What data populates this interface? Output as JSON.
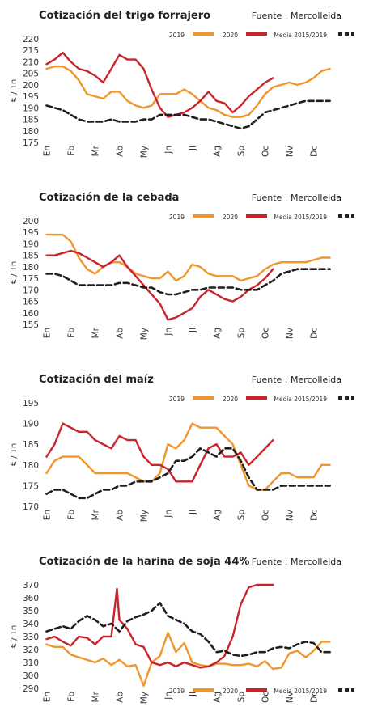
{
  "chart_data": [
    {
      "type": "line",
      "title": "Cotización del trigo forrajero",
      "source": "Fuente : Mercolleida",
      "xlabel": "",
      "ylabel": "€ / Tn",
      "ylim": [
        175,
        220
      ],
      "yticks": [
        175,
        180,
        185,
        190,
        195,
        200,
        205,
        210,
        215,
        220
      ],
      "grid": false,
      "legend": "top-right",
      "months": [
        "En",
        "Fb",
        "Mr",
        "Ab",
        "My",
        "Jn",
        "Jl",
        "Ag",
        "Sp",
        "Oc",
        "Nv",
        "Dc"
      ],
      "series": [
        {
          "name": "2019",
          "color": "#f0962a",
          "style": "solid",
          "x": [
            0,
            0.33,
            0.67,
            1,
            1.33,
            1.67,
            2,
            2.33,
            2.67,
            3,
            3.33,
            3.67,
            4,
            4.33,
            4.67,
            5,
            5.33,
            5.67,
            6,
            6.33,
            6.67,
            7,
            7.33,
            7.67,
            8,
            8.33,
            8.67,
            9,
            9.33,
            9.67,
            10,
            10.33,
            10.67,
            11,
            11.33,
            11.67
          ],
          "values": [
            207,
            208,
            208,
            206,
            202,
            196,
            195,
            194,
            197,
            197,
            193,
            191,
            190,
            191,
            196,
            196,
            196,
            198,
            196,
            193,
            190,
            189,
            187,
            186,
            186,
            187,
            191,
            196,
            199,
            200,
            201,
            200,
            201,
            203,
            206,
            207
          ]
        },
        {
          "name": "2020",
          "color": "#c8242b",
          "style": "solid",
          "x": [
            0,
            0.33,
            0.67,
            1,
            1.33,
            1.67,
            2,
            2.33,
            2.67,
            3,
            3.33,
            3.67,
            4,
            4.33,
            4.67,
            5,
            5.33,
            5.67,
            6,
            6.33,
            6.67,
            7,
            7.33,
            7.67,
            8,
            8.33,
            8.67,
            9,
            9.33
          ],
          "values": [
            209,
            211,
            214,
            210,
            207,
            206,
            204,
            201,
            207,
            213,
            211,
            211,
            207,
            198,
            190,
            186,
            187,
            188,
            190,
            193,
            197,
            193,
            192,
            188,
            191,
            195,
            198,
            201,
            203
          ]
        },
        {
          "name": "Media 2015/2019",
          "color": "#1f1f1f",
          "style": "dashed",
          "x": [
            0,
            0.33,
            0.67,
            1,
            1.33,
            1.67,
            2,
            2.33,
            2.67,
            3,
            3.33,
            3.67,
            4,
            4.33,
            4.67,
            5,
            5.33,
            5.67,
            6,
            6.33,
            6.67,
            7,
            7.33,
            7.67,
            8,
            8.33,
            8.67,
            9,
            9.33,
            9.67,
            10,
            10.33,
            10.67,
            11,
            11.33,
            11.67
          ],
          "values": [
            191,
            190,
            189,
            187,
            185,
            184,
            184,
            184,
            185,
            184,
            184,
            184,
            185,
            185,
            187,
            187,
            187,
            187,
            186,
            185,
            185,
            184,
            183,
            182,
            181,
            182,
            185,
            188,
            189,
            190,
            191,
            192,
            193,
            193,
            193,
            193
          ]
        }
      ]
    },
    {
      "type": "line",
      "title": "Cotización de la cebada",
      "source": "Fuente : Mercolleida",
      "xlabel": "",
      "ylabel": "€ / Tn",
      "ylim": [
        155,
        200
      ],
      "yticks": [
        155,
        160,
        165,
        170,
        175,
        180,
        185,
        190,
        195,
        200
      ],
      "grid": false,
      "legend": "top-right",
      "months": [
        "En",
        "Fb",
        "Mr",
        "Ab",
        "My",
        "Jn",
        "Jl",
        "Ag",
        "Sp",
        "Oc",
        "Nv",
        "Dc"
      ],
      "series": [
        {
          "name": "2019",
          "color": "#f0962a",
          "style": "solid",
          "x": [
            0,
            0.33,
            0.67,
            1,
            1.33,
            1.67,
            2,
            2.33,
            2.67,
            3,
            3.33,
            3.67,
            4,
            4.33,
            4.67,
            5,
            5.33,
            5.67,
            6,
            6.33,
            6.67,
            7,
            7.33,
            7.67,
            8,
            8.33,
            8.67,
            9,
            9.33,
            9.67,
            10,
            10.33,
            10.67,
            11,
            11.33,
            11.67
          ],
          "values": [
            194,
            194,
            194,
            191,
            184,
            179,
            177,
            180,
            182,
            182,
            180,
            177,
            176,
            175,
            175,
            178,
            174,
            176,
            181,
            180,
            177,
            176,
            176,
            176,
            174,
            175,
            176,
            179,
            181,
            182,
            182,
            182,
            182,
            183,
            184,
            184
          ]
        },
        {
          "name": "2020",
          "color": "#c8242b",
          "style": "solid",
          "x": [
            0,
            0.33,
            0.67,
            1,
            1.33,
            1.67,
            2,
            2.33,
            2.67,
            3,
            3.33,
            3.67,
            4,
            4.33,
            4.67,
            5,
            5.33,
            5.67,
            6,
            6.33,
            6.67,
            7,
            7.33,
            7.67,
            8,
            8.33,
            8.67,
            9,
            9.33
          ],
          "values": [
            185,
            185,
            186,
            187,
            186,
            184,
            182,
            180,
            182,
            185,
            180,
            176,
            172,
            168,
            164,
            157,
            158,
            160,
            162,
            167,
            170,
            168,
            166,
            165,
            167,
            170,
            172,
            175,
            179
          ]
        },
        {
          "name": "Media 2015/2019",
          "color": "#1f1f1f",
          "style": "dashed",
          "x": [
            0,
            0.33,
            0.67,
            1,
            1.33,
            1.67,
            2,
            2.33,
            2.67,
            3,
            3.33,
            3.67,
            4,
            4.33,
            4.67,
            5,
            5.33,
            5.67,
            6,
            6.33,
            6.67,
            7,
            7.33,
            7.67,
            8,
            8.33,
            8.67,
            9,
            9.33,
            9.67,
            10,
            10.33,
            10.67,
            11,
            11.33,
            11.67
          ],
          "values": [
            177,
            177,
            176,
            174,
            172,
            172,
            172,
            172,
            172,
            173,
            173,
            172,
            171,
            171,
            169,
            168,
            168,
            169,
            170,
            170,
            171,
            171,
            171,
            171,
            170,
            170,
            170,
            172,
            174,
            177,
            178,
            179,
            179,
            179,
            179,
            179
          ]
        }
      ]
    },
    {
      "type": "line",
      "title": "Cotización del maíz",
      "source": "Fuente : Mercolleida",
      "xlabel": "",
      "ylabel": "€ / Tn",
      "ylim": [
        170,
        195
      ],
      "yticks": [
        170,
        175,
        180,
        185,
        190,
        195
      ],
      "grid": false,
      "legend": "top-right",
      "months": [
        "En",
        "Fb",
        "Mr",
        "Ab",
        "My",
        "Jn",
        "Jl",
        "Ag",
        "Sp",
        "Oc",
        "Nv",
        "Dc"
      ],
      "series": [
        {
          "name": "2019",
          "color": "#f0962a",
          "style": "solid",
          "x": [
            0,
            0.33,
            0.67,
            1,
            1.33,
            1.67,
            2,
            2.33,
            2.67,
            3,
            3.33,
            3.67,
            4,
            4.33,
            4.67,
            5,
            5.33,
            5.67,
            6,
            6.33,
            6.67,
            7,
            7.33,
            7.67,
            8,
            8.33,
            8.67,
            9,
            9.33,
            9.67,
            10,
            10.33,
            10.67,
            11,
            11.33,
            11.67
          ],
          "values": [
            178,
            181,
            182,
            182,
            182,
            180,
            178,
            178,
            178,
            178,
            178,
            177,
            176,
            176,
            178,
            185,
            184,
            186,
            190,
            189,
            189,
            189,
            187,
            185,
            180,
            175,
            174,
            174,
            176,
            178,
            178,
            177,
            177,
            177,
            180,
            180
          ]
        },
        {
          "name": "2020",
          "color": "#c8242b",
          "style": "solid",
          "x": [
            0,
            0.33,
            0.67,
            1,
            1.33,
            1.67,
            2,
            2.33,
            2.67,
            3,
            3.33,
            3.67,
            4,
            4.33,
            4.67,
            5,
            5.33,
            5.67,
            6,
            6.33,
            6.67,
            7,
            7.33,
            7.67,
            8,
            8.33,
            8.67,
            9,
            9.33
          ],
          "values": [
            182,
            185,
            190,
            189,
            188,
            188,
            186,
            185,
            184,
            187,
            186,
            186,
            182,
            180,
            180,
            179,
            176,
            176,
            176,
            180,
            184,
            185,
            182,
            182,
            183,
            180,
            182,
            184,
            186
          ]
        },
        {
          "name": "Media 2015/2019",
          "color": "#1f1f1f",
          "style": "dashed",
          "x": [
            0,
            0.33,
            0.67,
            1,
            1.33,
            1.67,
            2,
            2.33,
            2.67,
            3,
            3.33,
            3.67,
            4,
            4.33,
            4.67,
            5,
            5.33,
            5.67,
            6,
            6.33,
            6.67,
            7,
            7.33,
            7.67,
            8,
            8.33,
            8.67,
            9,
            9.33,
            9.67,
            10,
            10.33,
            10.67,
            11,
            11.33,
            11.67
          ],
          "values": [
            173,
            174,
            174,
            173,
            172,
            172,
            173,
            174,
            174,
            175,
            175,
            176,
            176,
            176,
            177,
            178,
            181,
            181,
            182,
            184,
            183,
            182,
            184,
            184,
            181,
            177,
            174,
            174,
            174,
            175,
            175,
            175,
            175,
            175,
            175,
            175
          ]
        }
      ]
    },
    {
      "type": "line",
      "title": "Cotización de la harina de soja 44%",
      "source": "Fuente : Mercolleida",
      "xlabel": "",
      "ylabel": "€ / Tn",
      "ylim": [
        290,
        370
      ],
      "yticks": [
        290,
        300,
        310,
        320,
        330,
        340,
        350,
        360,
        370
      ],
      "grid": false,
      "legend": "bottom-center",
      "months": [
        "En",
        "Fb",
        "Mr",
        "Ab",
        "My",
        "Jn",
        "Jl",
        "Ag",
        "Sp",
        "Oc",
        "Nv",
        "Dc"
      ],
      "series": [
        {
          "name": "2019",
          "color": "#f0962a",
          "style": "solid",
          "x": [
            0,
            0.33,
            0.67,
            1,
            1.33,
            1.67,
            2,
            2.33,
            2.67,
            3,
            3.33,
            3.67,
            4,
            4.33,
            4.67,
            5,
            5.33,
            5.67,
            6,
            6.33,
            6.67,
            7,
            7.33,
            7.67,
            8,
            8.33,
            8.67,
            9,
            9.33,
            9.67,
            10,
            10.33,
            10.67,
            11,
            11.33,
            11.67
          ],
          "values": [
            324,
            322,
            322,
            316,
            314,
            312,
            310,
            313,
            308,
            312,
            307,
            308,
            292,
            310,
            315,
            333,
            318,
            325,
            310,
            308,
            307,
            309,
            309,
            308,
            308,
            309,
            307,
            311,
            305,
            306,
            317,
            319,
            314,
            319,
            326,
            326
          ]
        },
        {
          "name": "2020",
          "color": "#c8242b",
          "style": "solid",
          "x": [
            0,
            0.33,
            0.67,
            1,
            1.33,
            1.67,
            2,
            2.33,
            2.67,
            2.9,
            3,
            3.33,
            3.67,
            4,
            4.33,
            4.67,
            5,
            5.33,
            5.67,
            6,
            6.33,
            6.67,
            7,
            7.33,
            7.67,
            8,
            8.33,
            8.67,
            9,
            9.33
          ],
          "values": [
            328,
            330,
            326,
            323,
            330,
            329,
            324,
            330,
            330,
            367,
            343,
            336,
            324,
            322,
            310,
            308,
            310,
            307,
            310,
            308,
            306,
            307,
            310,
            315,
            330,
            355,
            368,
            370,
            370,
            370
          ]
        },
        {
          "name": "Media 2015/2019",
          "color": "#1f1f1f",
          "style": "dashed",
          "x": [
            0,
            0.33,
            0.67,
            1,
            1.33,
            1.67,
            2,
            2.33,
            2.67,
            3,
            3.33,
            3.67,
            4,
            4.33,
            4.67,
            5,
            5.33,
            5.67,
            6,
            6.33,
            6.67,
            7,
            7.33,
            7.67,
            8,
            8.33,
            8.67,
            9,
            9.33,
            9.67,
            10,
            10.33,
            10.67,
            11,
            11.33,
            11.67
          ],
          "values": [
            334,
            336,
            338,
            336,
            342,
            346,
            343,
            338,
            340,
            334,
            342,
            345,
            347,
            350,
            356,
            346,
            343,
            340,
            334,
            332,
            326,
            318,
            319,
            316,
            315,
            316,
            318,
            318,
            321,
            322,
            321,
            324,
            326,
            325,
            318,
            318
          ]
        }
      ]
    }
  ]
}
